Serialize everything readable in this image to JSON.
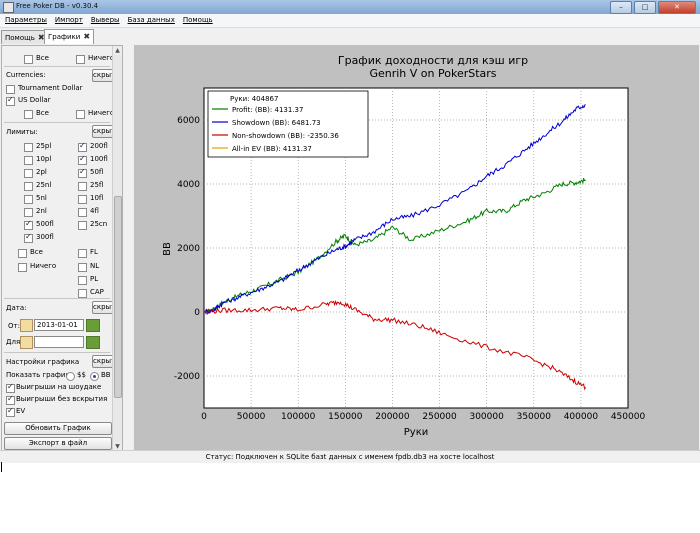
{
  "window": {
    "title": "Free Poker DB - v0.30.4",
    "buttons": [
      "–",
      "□",
      "✕"
    ]
  },
  "menu": [
    "Параметры",
    "Импорт",
    "Выверы",
    "База данных",
    "Помощь"
  ],
  "tabs": [
    {
      "label": "Помощь",
      "close": "✖"
    },
    {
      "label": "Графики",
      "close": "✖"
    }
  ],
  "sidebar": {
    "top_all": "Все",
    "top_none": "Ничего",
    "currencies_label": "Currencies:",
    "currencies_hide": "скрыть",
    "currency_tournament": "Tournament Dollar",
    "currency_usd": "US Dollar",
    "cur_all": "Все",
    "cur_none": "Ничего",
    "limits_label": "Лимиты:",
    "limits_hide": "скрыть",
    "limits_left": [
      {
        "label": "25pl",
        "checked": false
      },
      {
        "label": "10pl",
        "checked": false
      },
      {
        "label": "2pl",
        "checked": false
      },
      {
        "label": "25nl",
        "checked": false
      },
      {
        "label": "5nl",
        "checked": false
      },
      {
        "label": "2nl",
        "checked": false
      },
      {
        "label": "500fl",
        "checked": true
      },
      {
        "label": "300fl",
        "checked": true
      }
    ],
    "limits_right": [
      {
        "label": "200fl",
        "checked": true
      },
      {
        "label": "100fl",
        "checked": true
      },
      {
        "label": "50fl",
        "checked": true
      },
      {
        "label": "25fl",
        "checked": false
      },
      {
        "label": "10fl",
        "checked": false
      },
      {
        "label": "4fl",
        "checked": false
      },
      {
        "label": "25cn",
        "checked": false
      }
    ],
    "lim_all": "Все",
    "lim_none": "Ничего",
    "types": [
      "FL",
      "NL",
      "PL",
      "CAP"
    ],
    "date_label": "Дата:",
    "date_hide": "скрыть",
    "date_from_label": "От:",
    "date_from": "2013-01-01",
    "date_to_label": "Для:",
    "date_to": "",
    "graph_settings_label": "Настройки графика",
    "graph_hide": "скрыть",
    "show_graph_label": "Показать график:",
    "opt_dollars": "$$",
    "opt_bb": "BB",
    "show_showdown": "Выигрыши на шоудаке",
    "show_nonshowdown": "Выигрыши без вскрытия",
    "show_ev": "EV",
    "refresh_button": "Обновить График",
    "export_button": "Экспорт в файл"
  },
  "status": "Статус: Подключен к SQLite базt данных с именем fpdb.db3 на хосте localhost",
  "chart_data": {
    "type": "line",
    "title": "График доходности для кэш игр",
    "subtitle": "Genrih V on PokerStars",
    "xlabel": "Руки",
    "ylabel": "BB",
    "xlim": [
      0,
      450000
    ],
    "ylim": [
      -3000,
      7000
    ],
    "xticks": [
      0,
      50000,
      100000,
      150000,
      200000,
      250000,
      300000,
      350000,
      400000,
      450000
    ],
    "yticks": [
      -2000,
      0,
      2000,
      4000,
      6000
    ],
    "grid": true,
    "legend_position": "top-left",
    "legend_header": "Руки: 404867",
    "series": [
      {
        "name": "Profit: (BB): 4131.37",
        "color": "#008000",
        "x": [
          0,
          10000,
          20000,
          40000,
          60000,
          80000,
          100000,
          120000,
          140000,
          150000,
          160000,
          180000,
          200000,
          220000,
          250000,
          280000,
          300000,
          320000,
          340000,
          360000,
          380000,
          395000,
          405000
        ],
        "y": [
          0,
          80,
          300,
          550,
          750,
          1000,
          1250,
          1650,
          2200,
          2400,
          2100,
          2250,
          2650,
          2250,
          2550,
          2850,
          3150,
          3150,
          3500,
          3700,
          4000,
          4050,
          4130
        ]
      },
      {
        "name": "Showdown (BB): 6481.73",
        "color": "#0000cc",
        "x": [
          0,
          10000,
          20000,
          40000,
          60000,
          80000,
          100000,
          120000,
          140000,
          150000,
          160000,
          180000,
          200000,
          220000,
          250000,
          280000,
          300000,
          320000,
          340000,
          360000,
          380000,
          395000,
          405000
        ],
        "y": [
          0,
          60,
          280,
          500,
          720,
          950,
          1300,
          1650,
          1950,
          2050,
          2250,
          2500,
          2900,
          3000,
          3350,
          3800,
          4250,
          4600,
          5050,
          5500,
          5950,
          6350,
          6480
        ]
      },
      {
        "name": "Non-showdown (BB): -2350.36",
        "color": "#cc0000",
        "x": [
          0,
          20000,
          50000,
          80000,
          100000,
          130000,
          145000,
          160000,
          180000,
          200000,
          230000,
          260000,
          300000,
          340000,
          370000,
          390000,
          405000
        ],
        "y": [
          0,
          50,
          60,
          120,
          70,
          250,
          320,
          80,
          -220,
          -250,
          -450,
          -750,
          -1100,
          -1400,
          -1750,
          -2100,
          -2350
        ]
      },
      {
        "name": "All-in EV (BB): 4131.37",
        "color": "#e8a000",
        "x": [
          0,
          405000
        ],
        "y": [
          null,
          null
        ]
      }
    ]
  }
}
